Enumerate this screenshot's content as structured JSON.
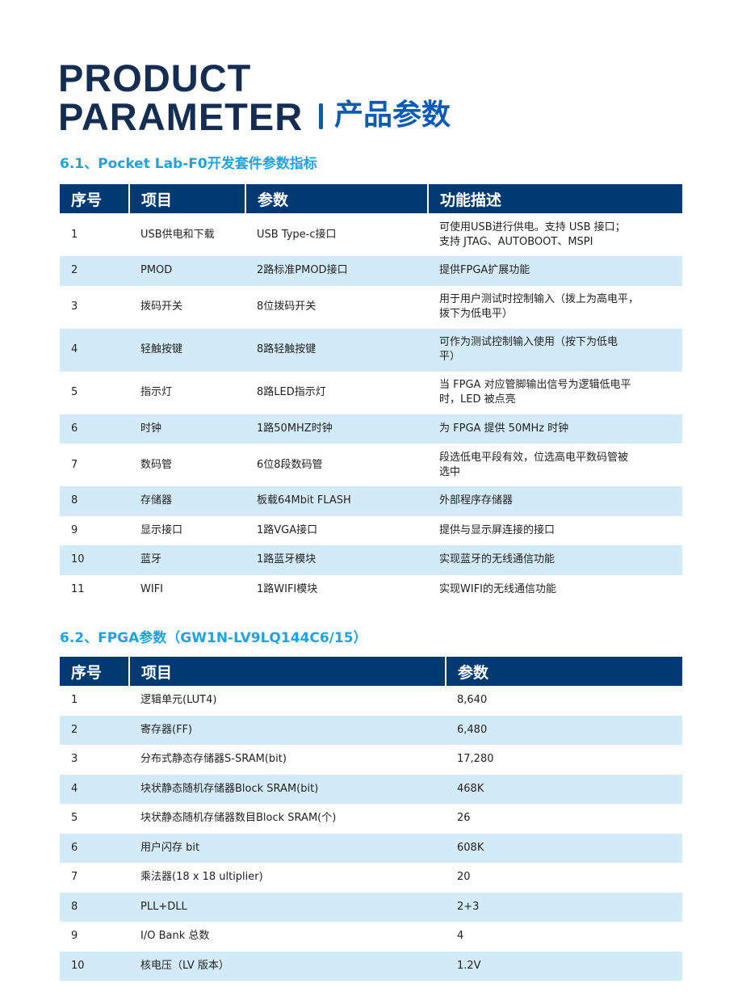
{
  "title": {
    "line1": "PRODUCT",
    "line2": "PARAMETER",
    "cn": "产品参数"
  },
  "section1": {
    "heading": "6.1、Pocket Lab-F0开发套件参数指标",
    "headers": [
      "序号",
      "项目",
      "参数",
      "功能描述"
    ],
    "rows": [
      [
        "1",
        "USB供电和下载",
        "USB Type-c接口",
        "可使用USB进行供电。支持 USB 接口；\n支持 JTAG、AUTOBOOT、MSPI"
      ],
      [
        "2",
        "PMOD",
        "2路标准PMOD接口",
        "提供FPGA扩展功能"
      ],
      [
        "3",
        "拨码开关",
        "8位拨码开关",
        "用于用户测试时控制输入（拨上为高电平，\n拨下为低电平）"
      ],
      [
        "4",
        "轻触按键",
        "8路轻触按键",
        "可作为测试控制输入使用（按下为低电\n平）"
      ],
      [
        "5",
        "指示灯",
        "8路LED指示灯",
        "当 FPGA 对应管脚输出信号为逻辑低电平\n时，LED 被点亮"
      ],
      [
        "6",
        "时钟",
        "1路50MHZ时钟",
        "为 FPGA 提供 50MHz 时钟"
      ],
      [
        "7",
        "数码管",
        "6位8段数码管",
        "段选低电平段有效，位选高电平数码管被\n选中"
      ],
      [
        "8",
        "存储器",
        "板载64Mbit FLASH",
        "外部程序存储器"
      ],
      [
        "9",
        "显示接口",
        "1路VGA接口",
        "提供与显示屏连接的接口"
      ],
      [
        "10",
        "蓝牙",
        "1路蓝牙模块",
        "实现蓝牙的无线通信功能"
      ],
      [
        "11",
        "WIFI",
        "1路WIFI模块",
        "实现WIFI的无线通信功能"
      ]
    ]
  },
  "section2": {
    "heading": "6.2、FPGA参数（GW1N-LV9LQ144C6/15）",
    "headers": [
      "序号",
      "项目",
      "参数"
    ],
    "rows": [
      [
        "1",
        "逻辑单元(LUT4)",
        "8,640"
      ],
      [
        "2",
        "寄存器(FF)",
        "6,480"
      ],
      [
        "3",
        "分布式静态存储器S-SRAM(bit)",
        "17,280"
      ],
      [
        "4",
        "块状静态随机存储器Block SRAM(bit)",
        "468K"
      ],
      [
        "5",
        "块状静态随机存储器数目Block SRAM(个)",
        "26"
      ],
      [
        "6",
        "用户闪存 bit",
        "608K"
      ],
      [
        "7",
        "乘法器(18 x 18 ultiplier)",
        "20"
      ],
      [
        "8",
        "PLL+DLL",
        "2+3"
      ],
      [
        "9",
        "I/O Bank 总数",
        "4"
      ],
      [
        "10",
        "核电压（LV 版本）",
        "1.2V"
      ]
    ]
  }
}
